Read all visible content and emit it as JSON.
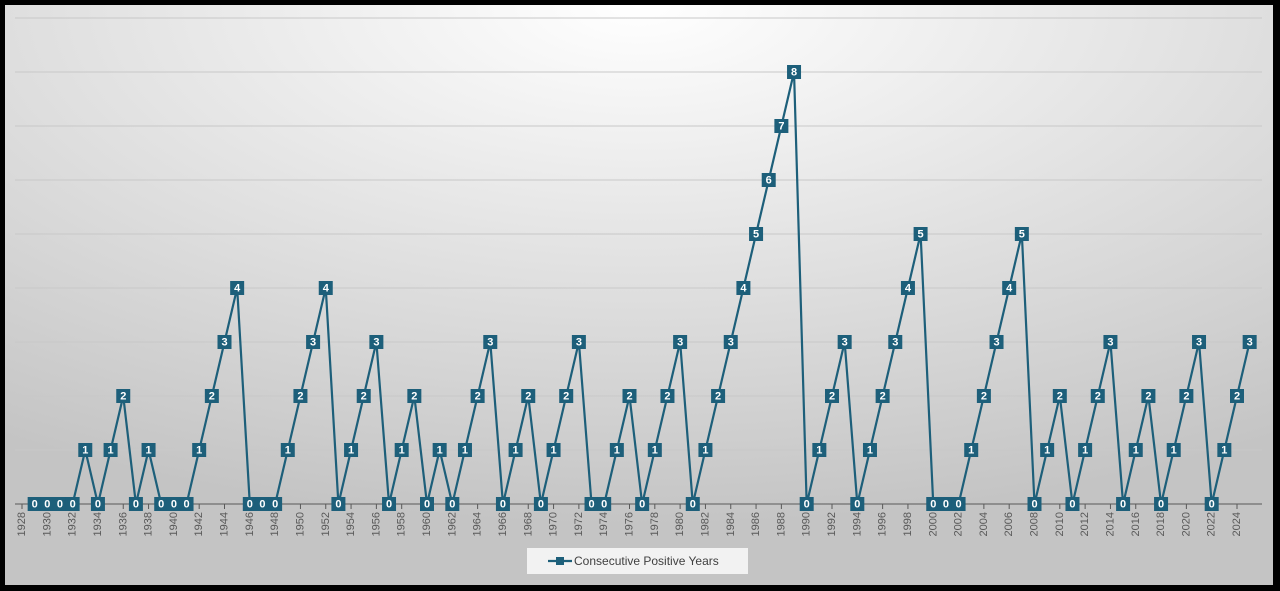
{
  "chart_data": {
    "type": "line",
    "categories": [
      "1928",
      null,
      "1930",
      null,
      "1932",
      null,
      "1934",
      null,
      "1936",
      null,
      "1938",
      null,
      "1940",
      null,
      "1942",
      null,
      "1944",
      null,
      "1946",
      null,
      "1948",
      null,
      "1950",
      null,
      "1952",
      null,
      "1954",
      null,
      "1956",
      null,
      "1958",
      null,
      "1960",
      null,
      "1962",
      null,
      "1964",
      null,
      "1966",
      null,
      "1968",
      null,
      "1970",
      null,
      "1972",
      null,
      "1974",
      null,
      "1976",
      null,
      "1978",
      null,
      "1980",
      null,
      "1982",
      null,
      "1984",
      null,
      "1986",
      null,
      "1988",
      null,
      "1990",
      null,
      "1992",
      null,
      "1994",
      null,
      "1996",
      null,
      "1998",
      null,
      "2000",
      null,
      "2002",
      null,
      "2004",
      null,
      "2006",
      null,
      "2008",
      null,
      "2010",
      null,
      "2012",
      null,
      "2014",
      null,
      "2016",
      null,
      "2018",
      null,
      "2020",
      null,
      "2022",
      null,
      "2024",
      null
    ],
    "series": [
      {
        "name": "Consecutive Positive Years",
        "color": "#1d5f7a",
        "values": [
          null,
          0,
          0,
          0,
          0,
          1,
          0,
          1,
          2,
          0,
          1,
          0,
          0,
          0,
          1,
          2,
          3,
          4,
          0,
          0,
          0,
          1,
          2,
          3,
          4,
          0,
          1,
          2,
          3,
          0,
          1,
          2,
          0,
          1,
          0,
          1,
          2,
          3,
          0,
          1,
          2,
          0,
          1,
          2,
          3,
          0,
          0,
          1,
          2,
          0,
          1,
          2,
          3,
          0,
          1,
          2,
          3,
          4,
          5,
          6,
          7,
          8,
          0,
          1,
          2,
          3,
          0,
          1,
          2,
          3,
          4,
          5,
          0,
          0,
          0,
          1,
          2,
          3,
          4,
          5,
          0,
          1,
          2,
          0,
          1,
          2,
          3,
          0,
          1,
          2,
          0,
          1,
          2,
          3,
          0,
          1,
          2,
          3
        ]
      }
    ],
    "ylim": [
      0,
      9
    ],
    "yticks": [
      0,
      1,
      2,
      3,
      4,
      5,
      6,
      7,
      8,
      9
    ],
    "grid": true,
    "data_labels": true,
    "legend": "bottom"
  }
}
